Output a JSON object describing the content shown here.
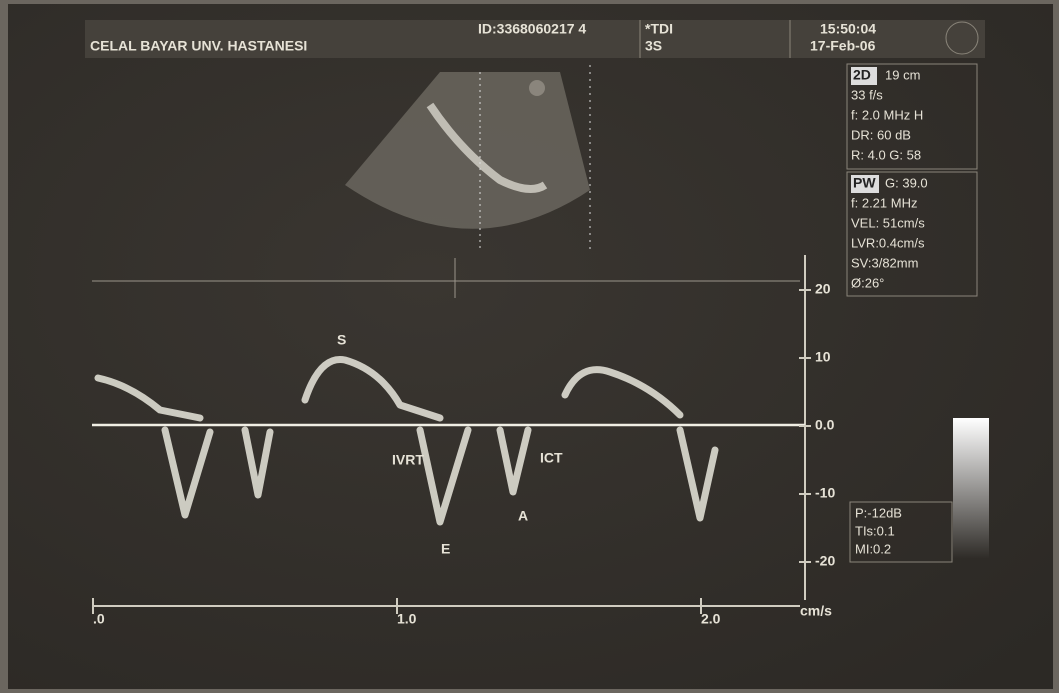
{
  "header": {
    "hospital": "CELAL BAYAR UNV. HASTANESI",
    "id": "ID:3368060217 4",
    "mode": "*TDI",
    "probe": "3S",
    "time": "15:50:04",
    "date": "17-Feb-06"
  },
  "panel_2d": {
    "label": "2D",
    "lines": [
      "19 cm",
      "33 f/s",
      "f: 2.0 MHz H",
      "DR: 60 dB",
      "R: 4.0   G: 58"
    ]
  },
  "panel_pw": {
    "label": "PW",
    "lines": [
      "G: 39.0",
      "f: 2.21 MHz",
      "VEL: 51cm/s",
      "LVR:0.4cm/s",
      "SV:3/82mm",
      "Ø:26°"
    ]
  },
  "panel_power": {
    "lines": [
      "P:-12dB",
      "TIs:0.1",
      "MI:0.2"
    ]
  },
  "annotations": [
    "S",
    "IVRT",
    "ICT",
    "A",
    "E"
  ],
  "velocity_axis": {
    "labels": [
      "20",
      "10",
      "0.0",
      "-10",
      "-20"
    ],
    "unit": "cm/s"
  },
  "time_axis": {
    "labels": [
      ".0",
      "1.0",
      "2.0"
    ]
  }
}
